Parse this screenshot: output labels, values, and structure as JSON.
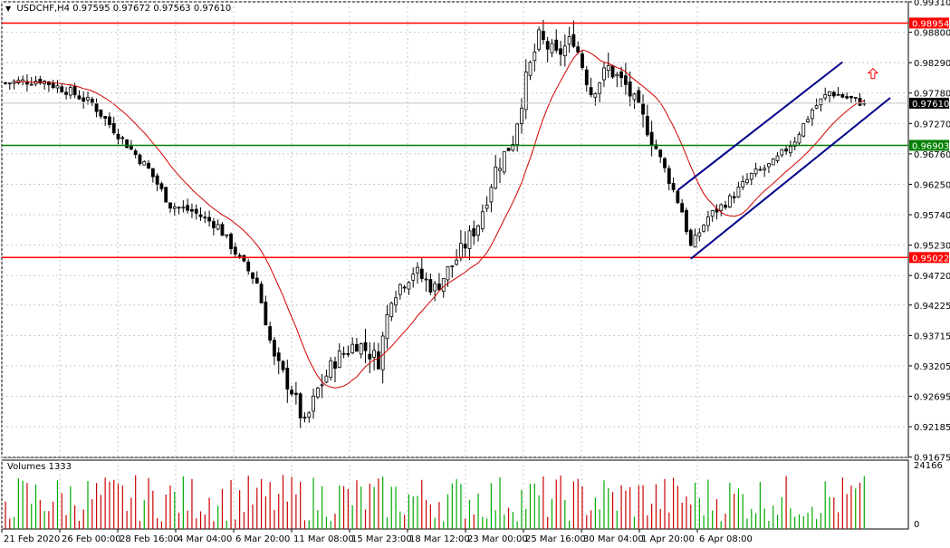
{
  "header": {
    "symbol": "USDCHF,H4",
    "open": "0.97595",
    "high": "0.97672",
    "low": "0.97563",
    "close": "0.97610"
  },
  "volume_title": "Volumes 1333",
  "colors": {
    "bull": "#000000",
    "bear": "#000000",
    "ma": "#d40000",
    "resistance": "#ff0000",
    "support_mid": "#008000",
    "channel": "#00008b",
    "volume_up": "#00aa00",
    "volume_down": "#cc0000",
    "grid": "#c8c8c8"
  },
  "chart_data": {
    "type": "candlestick",
    "symbol": "USDCHF",
    "timeframe": "H4",
    "ylim": [
      0.9167,
      0.9931
    ],
    "y_ticks": [
      "0.99310",
      "0.98800",
      "0.98290",
      "0.97780",
      "0.97270",
      "0.96760",
      "0.96250",
      "0.95740",
      "0.95230",
      "0.94720",
      "0.94225",
      "0.93715",
      "0.93205",
      "0.92695",
      "0.92185",
      "0.91675"
    ],
    "x_ticks": [
      "21 Feb 2020",
      "26 Feb 00:00",
      "28 Feb 16:00",
      "4 Mar 04:00",
      "6 Mar 20:00",
      "11 Mar 08:00",
      "15 Mar 23:00",
      "18 Mar 12:00",
      "23 Mar 00:00",
      "25 Mar 16:00",
      "30 Mar 04:00",
      "1 Apr 20:00",
      "6 Apr 08:00"
    ],
    "levels": [
      {
        "label": "0.98954",
        "value": 0.98954,
        "color": "#ff0000"
      },
      {
        "label": "0.96903",
        "value": 0.96903,
        "color": "#008000"
      },
      {
        "label": "0.95022",
        "value": 0.95022,
        "color": "#ff0000"
      }
    ],
    "current_price": {
      "label": "0.97610",
      "value": 0.9761
    },
    "close_path": [
      [
        0,
        0.9795
      ],
      [
        8,
        0.98
      ],
      [
        15,
        0.978
      ],
      [
        20,
        0.976
      ],
      [
        27,
        0.97
      ],
      [
        33,
        0.965
      ],
      [
        38,
        0.959
      ],
      [
        43,
        0.958
      ],
      [
        49,
        0.9555
      ],
      [
        54,
        0.95
      ],
      [
        58,
        0.946
      ],
      [
        62,
        0.933
      ],
      [
        66,
        0.928
      ],
      [
        69,
        0.922
      ],
      [
        72,
        0.928
      ],
      [
        76,
        0.933
      ],
      [
        81,
        0.936
      ],
      [
        86,
        0.933
      ],
      [
        89,
        0.944
      ],
      [
        94,
        0.948
      ],
      [
        99,
        0.945
      ],
      [
        104,
        0.95
      ],
      [
        109,
        0.956
      ],
      [
        113,
        0.965
      ],
      [
        117,
        0.97
      ],
      [
        120,
        0.98
      ],
      [
        123,
        0.987
      ],
      [
        127,
        0.984
      ],
      [
        131,
        0.987
      ],
      [
        135,
        0.978
      ],
      [
        139,
        0.982
      ],
      [
        143,
        0.979
      ],
      [
        148,
        0.972
      ],
      [
        152,
        0.965
      ],
      [
        156,
        0.958
      ],
      [
        158,
        0.952
      ],
      [
        162,
        0.957
      ],
      [
        167,
        0.96
      ],
      [
        172,
        0.964
      ],
      [
        177,
        0.966
      ],
      [
        182,
        0.97
      ],
      [
        186,
        0.975
      ],
      [
        190,
        0.978
      ],
      [
        194,
        0.977
      ],
      [
        198,
        0.9761
      ]
    ],
    "channel": {
      "lower_start": {
        "bar": 158,
        "price": 0.95
      },
      "lower_end": {
        "bar": 204,
        "price": 0.977
      },
      "upper_start": {
        "bar": 155,
        "price": 0.9615
      },
      "upper_end": {
        "bar": 193,
        "price": 0.983
      }
    },
    "signal_arrow": {
      "bar": 200,
      "price": 0.981,
      "direction": "up"
    }
  }
}
